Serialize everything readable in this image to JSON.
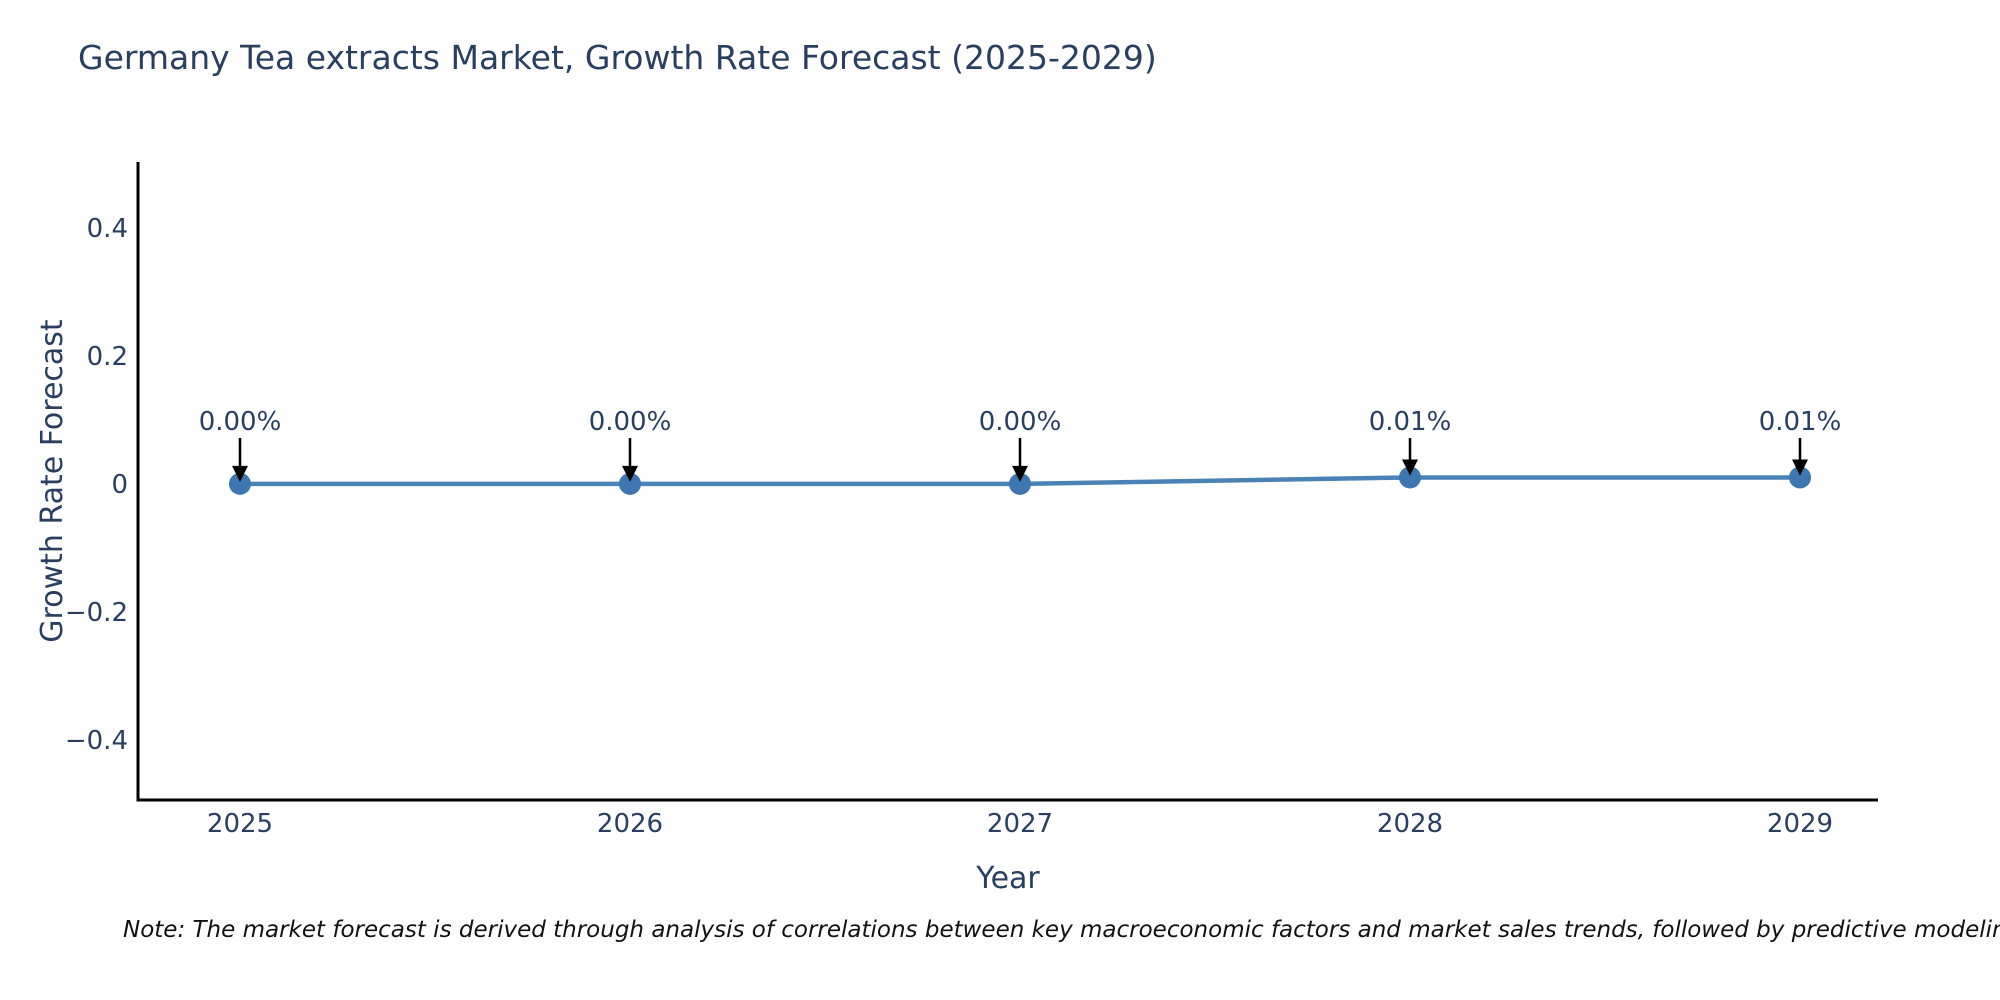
{
  "chart_data": {
    "type": "line",
    "title": "Germany Tea extracts Market, Growth Rate Forecast (2025-2029)",
    "xlabel": "Year",
    "ylabel": "Growth Rate Forecast",
    "categories": [
      "2025",
      "2026",
      "2027",
      "2028",
      "2029"
    ],
    "series": [
      {
        "name": "Growth Rate Forecast",
        "values": [
          0.0,
          0.0,
          0.0,
          0.01,
          0.01
        ]
      }
    ],
    "point_labels": [
      "0.00%",
      "0.00%",
      "0.00%",
      "0.01%",
      "0.01%"
    ],
    "y_ticks": [
      {
        "label": "0.4",
        "value": 0.4
      },
      {
        "label": "0.2",
        "value": 0.2
      },
      {
        "label": "0",
        "value": 0
      },
      {
        "label": "−0.2",
        "value": -0.2
      },
      {
        "label": "−0.4",
        "value": -0.4
      }
    ],
    "ylim": [
      -0.494,
      0.503
    ],
    "grid": false,
    "legend": "none",
    "line_color": "#4a82b4",
    "marker_color": "#3d76b0",
    "axis_color": "#000000",
    "annotation_arrow_color": "#000000",
    "text_color": "#2a3f5f"
  },
  "note": {
    "text": "Note: The market forecast is derived through analysis of correlations between key macroeconomic factors and market sales trends, followed by predictive modeling to project future sa"
  }
}
